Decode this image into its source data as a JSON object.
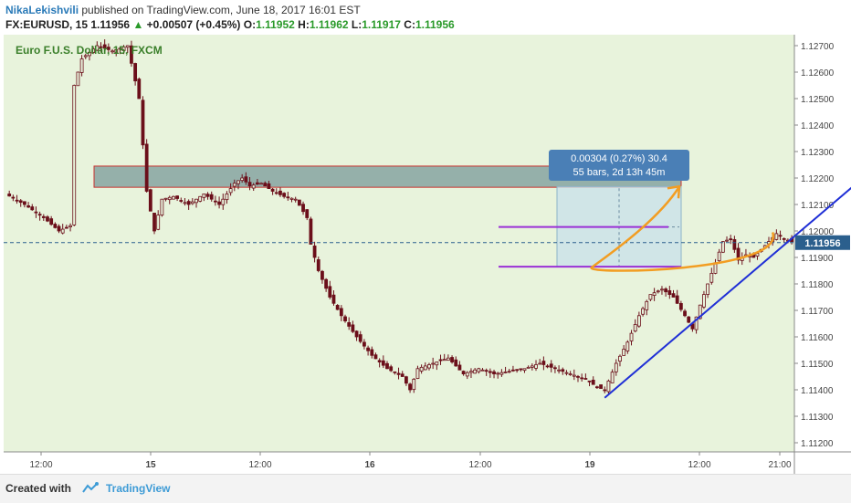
{
  "header": {
    "author": "NikaLekishvili",
    "published_text": " published on TradingView.com, June 18, 2017 16:01 EST",
    "symbol": "FX:EURUSD, 15",
    "last": "1.11956",
    "change_arrow": "▲",
    "change": "+0.00507 (+0.45%)",
    "o_label": "O:",
    "o_value": "1.11952",
    "h_label": "H:",
    "h_value": "1.11962",
    "l_label": "L:",
    "l_value": "1.11917",
    "c_label": "C:",
    "c_value": "1.11956"
  },
  "footer": {
    "created_with": "Created with",
    "brand": "TradingView",
    "logo_icon": "tradingview-cloud-icon"
  },
  "colors": {
    "plot_bg": "#e8f3dc",
    "candle": "#6b0f1a",
    "trendline": "#1f2fd6",
    "channel": "#9a30d6",
    "arrow": "#f29d22",
    "zone_fill": "#7a9a9a",
    "zone_border": "#c8322f",
    "measure_fill": "#c9e1ea",
    "label_bg": "#4a7fb6",
    "price_line": "#2b5f8d"
  },
  "chart_data": {
    "type": "candlestick",
    "title": "Euro F.U.S. Dollar, 15, FXCM",
    "ylim": [
      1.1312,
      1.1276
    ],
    "y_ticks": [
      "1.12700",
      "1.12600",
      "1.12500",
      "1.12400",
      "1.12300",
      "1.12200",
      "1.12100",
      "1.12000",
      "1.11900",
      "1.11800",
      "1.11700",
      "1.11600",
      "1.11500",
      "1.11400",
      "1.11300",
      "1.11200"
    ],
    "x_ticks": [
      "12:00",
      "15",
      "12:00",
      "16",
      "12:00",
      "19",
      "12:00",
      "21:00"
    ],
    "current_price": "1.11956",
    "price_path": [
      [
        0,
        1.1214
      ],
      [
        5,
        1.121
      ],
      [
        10,
        1.1205
      ],
      [
        14,
        1.12
      ],
      [
        17,
        1.1202
      ],
      [
        18,
        1.1255
      ],
      [
        20,
        1.1265
      ],
      [
        24,
        1.127
      ],
      [
        28,
        1.1268
      ],
      [
        32,
        1.127
      ],
      [
        35,
        1.125
      ],
      [
        37,
        1.1215
      ],
      [
        39,
        1.12
      ],
      [
        41,
        1.1212
      ],
      [
        44,
        1.1213
      ],
      [
        48,
        1.121
      ],
      [
        52,
        1.1214
      ],
      [
        56,
        1.121
      ],
      [
        60,
        1.1218
      ],
      [
        62,
        1.122
      ],
      [
        64,
        1.1217
      ],
      [
        67,
        1.1218
      ],
      [
        70,
        1.1215
      ],
      [
        73,
        1.1213
      ],
      [
        76,
        1.1212
      ],
      [
        79,
        1.1205
      ],
      [
        80,
        1.1195
      ],
      [
        82,
        1.1185
      ],
      [
        85,
        1.1175
      ],
      [
        88,
        1.1168
      ],
      [
        92,
        1.116
      ],
      [
        96,
        1.1153
      ],
      [
        100,
        1.1148
      ],
      [
        104,
        1.1145
      ],
      [
        106,
        1.114
      ],
      [
        108,
        1.1148
      ],
      [
        112,
        1.115
      ],
      [
        116,
        1.1152
      ],
      [
        120,
        1.1146
      ],
      [
        124,
        1.1148
      ],
      [
        128,
        1.1146
      ],
      [
        132,
        1.1147
      ],
      [
        136,
        1.1148
      ],
      [
        140,
        1.115
      ],
      [
        144,
        1.1148
      ],
      [
        148,
        1.1146
      ],
      [
        152,
        1.1144
      ],
      [
        155,
        1.1141
      ],
      [
        157,
        1.114
      ],
      [
        160,
        1.115
      ],
      [
        163,
        1.1158
      ],
      [
        166,
        1.1168
      ],
      [
        169,
        1.1176
      ],
      [
        172,
        1.1178
      ],
      [
        175,
        1.1175
      ],
      [
        178,
        1.1168
      ],
      [
        180,
        1.1163
      ],
      [
        182,
        1.1172
      ],
      [
        184,
        1.118
      ],
      [
        186,
        1.1188
      ],
      [
        188,
        1.1196
      ],
      [
        190,
        1.1197
      ],
      [
        192,
        1.1189
      ],
      [
        194,
        1.1191
      ],
      [
        196,
        1.119
      ],
      [
        198,
        1.1193
      ],
      [
        200,
        1.1196
      ],
      [
        202,
        1.1199
      ],
      [
        204,
        1.1197
      ],
      [
        206,
        1.1196
      ]
    ],
    "annotations": {
      "resistance_zone": [
        1.12245,
        1.12165
      ],
      "channel": [
        1.12015,
        1.11865
      ],
      "trendline": [
        [
          157,
          1.1137
        ],
        [
          223,
          1.1218
        ]
      ],
      "projection_label": [
        "0.00304 (0.27%) 30.4",
        "55 bars, 2d 13h 45m"
      ]
    }
  }
}
